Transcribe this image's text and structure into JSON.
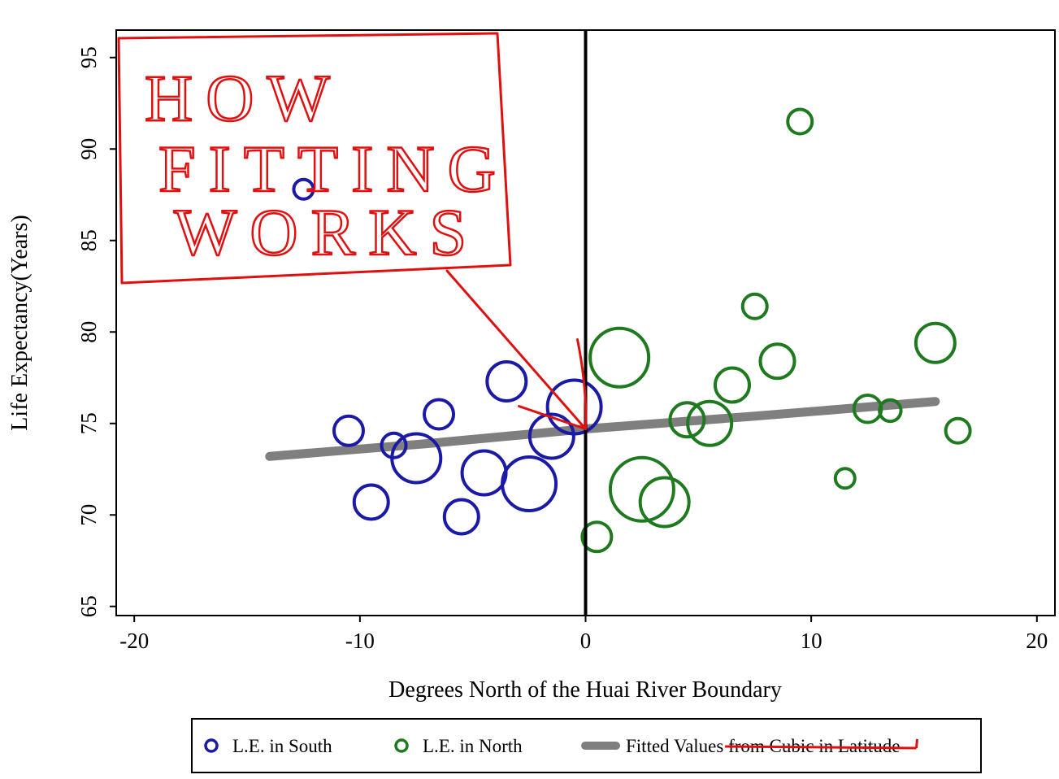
{
  "chart_data": {
    "type": "scatter",
    "xlabel": "Degrees North of the Huai River Boundary",
    "ylabel": "Life Expectancy(Years)",
    "xlim": [
      -20.8,
      20.8
    ],
    "ylim": [
      64.5,
      96.5
    ],
    "xticks": [
      -20,
      -10,
      0,
      10,
      20
    ],
    "xtick_labels": [
      "-20",
      "-10",
      "0",
      "10",
      "20"
    ],
    "yticks": [
      65,
      70,
      75,
      80,
      85,
      90,
      95
    ],
    "ytick_labels": [
      "65",
      "70",
      "75",
      "80",
      "85",
      "90",
      "95"
    ],
    "boundary_x": 0,
    "grid": false,
    "series": [
      {
        "name": "L.E. in South",
        "color": "#1a1aa6",
        "kind": "bubble",
        "points": [
          {
            "x": -12.5,
            "y": 87.8,
            "size": 1
          },
          {
            "x": -10.5,
            "y": 74.6,
            "size": 2
          },
          {
            "x": -9.5,
            "y": 70.7,
            "size": 2.5
          },
          {
            "x": -8.5,
            "y": 73.8,
            "size": 1.5
          },
          {
            "x": -7.5,
            "y": 73.1,
            "size": 4
          },
          {
            "x": -6.5,
            "y": 75.5,
            "size": 2
          },
          {
            "x": -5.5,
            "y": 69.9,
            "size": 2.5
          },
          {
            "x": -4.5,
            "y": 72.3,
            "size": 3.5
          },
          {
            "x": -3.5,
            "y": 77.3,
            "size": 3
          },
          {
            "x": -2.5,
            "y": 71.7,
            "size": 4.5
          },
          {
            "x": -1.5,
            "y": 74.3,
            "size": 3.5
          },
          {
            "x": -0.5,
            "y": 75.9,
            "size": 4.5
          }
        ]
      },
      {
        "name": "L.E. in North",
        "color": "#1f7a1f",
        "kind": "bubble",
        "points": [
          {
            "x": 0.5,
            "y": 68.8,
            "size": 2
          },
          {
            "x": 1.5,
            "y": 78.6,
            "size": 5
          },
          {
            "x": 2.5,
            "y": 71.4,
            "size": 5.5
          },
          {
            "x": 3.5,
            "y": 70.7,
            "size": 4
          },
          {
            "x": 4.5,
            "y": 75.2,
            "size": 2.5
          },
          {
            "x": 5.5,
            "y": 75.0,
            "size": 3.5
          },
          {
            "x": 6.5,
            "y": 77.1,
            "size": 2.5
          },
          {
            "x": 7.5,
            "y": 81.4,
            "size": 1.5
          },
          {
            "x": 8.5,
            "y": 78.4,
            "size": 2.5
          },
          {
            "x": 9.5,
            "y": 91.5,
            "size": 1.5
          },
          {
            "x": 11.5,
            "y": 72.0,
            "size": 1
          },
          {
            "x": 12.5,
            "y": 75.8,
            "size": 1.8
          },
          {
            "x": 13.5,
            "y": 75.7,
            "size": 1.2
          },
          {
            "x": 15.5,
            "y": 79.4,
            "size": 3
          },
          {
            "x": 16.5,
            "y": 74.6,
            "size": 1.5
          }
        ]
      },
      {
        "name": "Fitted Values from Cubic in Latitude",
        "color": "#7f7f7f",
        "kind": "line",
        "x": [
          -14,
          -7,
          0,
          7.5,
          15.5
        ],
        "y": [
          73.2,
          73.9,
          74.7,
          75.4,
          76.2
        ]
      }
    ],
    "legend": {
      "position": "bottom",
      "entries": [
        {
          "label": "L.E. in South",
          "marker": "circle",
          "color": "#1a1aa6"
        },
        {
          "label": "L.E. in North",
          "marker": "circle",
          "color": "#1f7a1f"
        },
        {
          "label": "Fitted Values from Cubic in Latitude",
          "marker": "line",
          "color": "#7f7f7f",
          "struck_through_text": "from Cubic in Latitude"
        }
      ]
    },
    "annotation": {
      "text": "HOW FITTING WORKS",
      "lines": [
        "HOW",
        "FITTING",
        "WORKS"
      ],
      "color": "#e01010",
      "style": "handwritten box with arrow",
      "arrow_target": {
        "x": 0,
        "y": 74.7
      }
    }
  }
}
